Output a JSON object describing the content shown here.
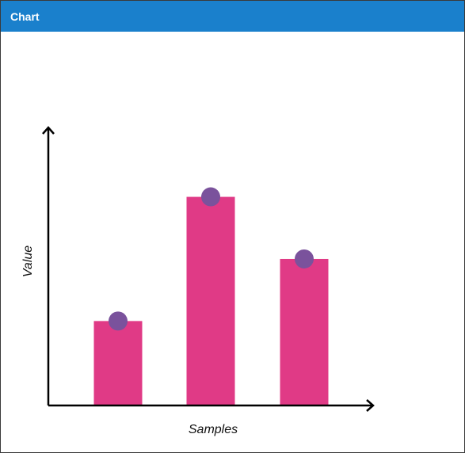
{
  "window": {
    "title": "Chart"
  },
  "colors": {
    "titlebar": "#1a80cc",
    "bar": "#e03a86",
    "marker": "#7a529c",
    "axis": "#000000"
  },
  "chart_data": {
    "type": "bar",
    "title": "",
    "xlabel": "Samples",
    "ylabel": "Value",
    "categories": [
      "",
      "",
      ""
    ],
    "values": [
      34,
      84,
      59
    ],
    "markers": [
      34,
      84,
      59
    ],
    "ylim": [
      0,
      100
    ],
    "grid": false,
    "legend": "none"
  }
}
